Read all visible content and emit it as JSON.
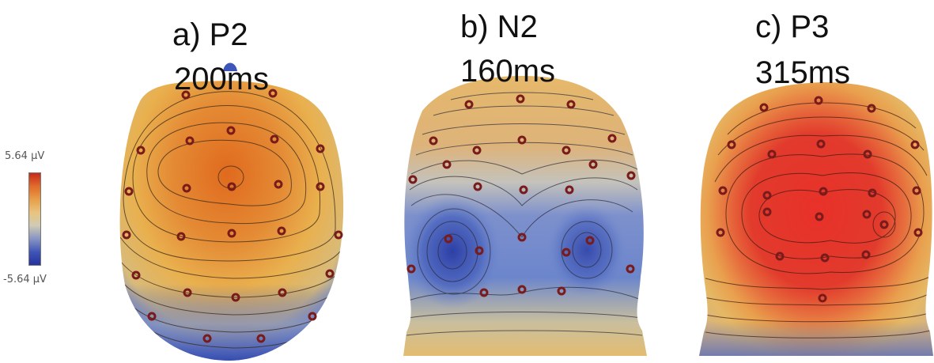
{
  "colorbar": {
    "max_label": "5.64 µV",
    "min_label": "-5.64 µV",
    "colors": [
      "#c62a1c",
      "#e06a2a",
      "#e7a04a",
      "#e8c47e",
      "#cfcbb4",
      "#8a96c4",
      "#3f55b6",
      "#2533a0"
    ]
  },
  "panels": [
    {
      "component": "a) P2",
      "latency": "200ms"
    },
    {
      "component": "b) N2",
      "latency": "160ms"
    },
    {
      "component": "c) P3",
      "latency": "315ms"
    }
  ]
}
